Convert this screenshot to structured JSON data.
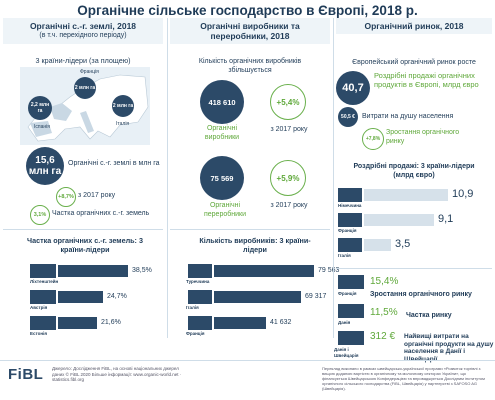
{
  "title": "Органічне сільське господарство в Європі, 2018 р.",
  "col1": {
    "head": "Органічні с.-г. землі, 2018",
    "sub": "(в т.ч. перехідного періоду)",
    "leaders_title": "3 країни-лідери (за площею)",
    "map_labels": {
      "france": "Франція",
      "spain": "Іспанія",
      "italy": "Італія"
    },
    "map_values": {
      "france": "2 млн га",
      "spain": "2,2 млн га",
      "italy": "2 млн га"
    },
    "total_value": "15,6 млн га",
    "total_label": "Органічні с.-г. землі в млн га",
    "growth_value": "+8,7%",
    "growth_label": "з 2017 року",
    "share_value": "3,1%",
    "share_label": "Частка органічних с.-г. земель",
    "share_leaders_title": "Частка органічних с.-г. земель: 3 країни-лідери",
    "share_leaders": [
      {
        "country": "Ліхтенштейн",
        "value": "38,5%",
        "pct": 38.5
      },
      {
        "country": "Австрія",
        "value": "24,7%",
        "pct": 24.7
      },
      {
        "country": "Естонія",
        "value": "21,6%",
        "pct": 21.6
      }
    ]
  },
  "col2": {
    "head": "Органічні виробники та переробники, 2018",
    "growth_title": "Кількість органічних виробників збільшується",
    "producers_value": "418 610",
    "producers_label": "Органічні виробники",
    "producers_growth": "+5,4%",
    "producers_growth_label": "з 2017 року",
    "processors_value": "75 569",
    "processors_label": "Органічні переробники",
    "processors_growth": "+5,9%",
    "processors_growth_label": "з 2017 року",
    "leaders_title": "Кількість виробників: 3 країни-лідери",
    "leaders": [
      {
        "country": "Туреччина",
        "value": "79 563",
        "num": 79563
      },
      {
        "country": "Італія",
        "value": "69 317",
        "num": 69317
      },
      {
        "country": "Франція",
        "value": "41 632",
        "num": 41632
      }
    ]
  },
  "col3": {
    "head": "Органічний ринок, 2018",
    "growth_title": "Європейський органічний ринок росте",
    "retail_value": "40,7",
    "retail_label": "Роздрібні продажі органічних продуктів в Європі, млрд євро",
    "percapita_value": "50,5 €",
    "percapita_label": "Витрати на душу населення",
    "market_growth": "+7,8%",
    "market_growth_label": "Зростання органічного ринку",
    "retail_leaders_title": "Роздрібні продажі: 3 країни-лідери (млрд євро)",
    "retail_leaders": [
      {
        "country": "Німеччина",
        "value": "10,9",
        "num": 10.9
      },
      {
        "country": "Франція",
        "value": "9,1",
        "num": 9.1
      },
      {
        "country": "Італія",
        "value": "3,5",
        "num": 3.5
      }
    ],
    "highlights": [
      {
        "country": "Франція",
        "value": "15,4%",
        "label": "Зростання органічного ринку"
      },
      {
        "country": "Данія",
        "value": "11,5%",
        "label": "Частка ринку"
      },
      {
        "country": "Данія і Швейцарія",
        "value": "312 €",
        "label": "Найвищі витрати на органічні продукти на душу населення в Данії і Швейцарії"
      }
    ]
  },
  "footer": {
    "logo": "FiBL",
    "source": "Джерело: Дослідження FiBL, на основі національних джерел даних © FiBL 2020 Більше інформації: www.organic-world.net · statistics.fibl.org",
    "note": "Переклад виконано в рамках швейцарсько-української програми «Розвиток торгівлі з вищою доданою вартістю в органічному та молочному секторах України», що фінансується Швейцарською Конфедерацією та впроваджується Дослідним інститутом органічного сільського господарства (FiBL, Швейцарія) у партнерстві з SAFOSO AG (Швейцарія)."
  },
  "colors": {
    "navy": "#2c4a68",
    "green": "#5fa83a",
    "header_bg": "#eef4f8"
  }
}
